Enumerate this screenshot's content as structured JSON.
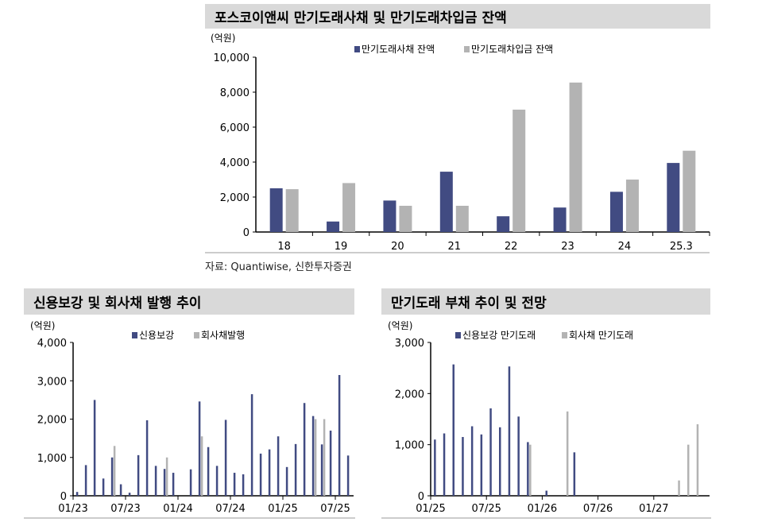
{
  "chart_data": [
    {
      "type": "bar",
      "title": "포스코이앤씨 만기도래사채 및 만기도래차입금 잔액",
      "unit": "(억원)",
      "categories": [
        "18",
        "19",
        "20",
        "21",
        "22",
        "23",
        "24",
        "25.3"
      ],
      "series": [
        {
          "name": "만기도래사채 잔액",
          "color": "#414b82",
          "values": [
            2500,
            600,
            1800,
            3450,
            900,
            1400,
            2300,
            3950
          ]
        },
        {
          "name": "만기도래차입금 잔액",
          "color": "#b3b3b3",
          "values": [
            2450,
            2800,
            1500,
            1500,
            7000,
            8550,
            3000,
            4650
          ]
        }
      ],
      "ylim": [
        0,
        10000
      ],
      "yticks": [
        "0",
        "2,000",
        "4,000",
        "6,000",
        "8,000",
        "10,000"
      ],
      "legend": "top",
      "source": "자료: Quantiwise, 신한투자증권"
    },
    {
      "type": "bar",
      "title": "신용보강 및 회사채 발행 추이",
      "unit": "(억원)",
      "xticks": [
        "01/23",
        "07/23",
        "01/24",
        "07/24",
        "01/25",
        "07/25"
      ],
      "months": [
        "01/23",
        "02/23",
        "03/23",
        "04/23",
        "05/23",
        "06/23",
        "07/23",
        "08/23",
        "09/23",
        "10/23",
        "11/23",
        "12/23",
        "01/24",
        "02/24",
        "03/24",
        "04/24",
        "05/24",
        "06/24",
        "07/24",
        "08/24",
        "09/24",
        "10/24",
        "11/24",
        "12/24",
        "01/25",
        "02/25",
        "03/25",
        "04/25",
        "05/25",
        "06/25",
        "07/25",
        "08/25"
      ],
      "series": [
        {
          "name": "신용보강",
          "color": "#414b82",
          "values": [
            100,
            800,
            2500,
            450,
            1000,
            300,
            80,
            1060,
            1970,
            780,
            700,
            600,
            0,
            690,
            2460,
            1270,
            780,
            1980,
            600,
            560,
            2650,
            1100,
            1210,
            1550,
            750,
            1350,
            2420,
            2080,
            1340,
            1700,
            3150,
            1050
          ]
        },
        {
          "name": "회사채발행",
          "color": "#b3b3b3",
          "values": [
            0,
            0,
            0,
            0,
            1300,
            0,
            0,
            0,
            0,
            0,
            1000,
            0,
            0,
            0,
            1550,
            0,
            0,
            0,
            0,
            0,
            0,
            0,
            0,
            0,
            0,
            0,
            0,
            2000,
            2000,
            0,
            0,
            0
          ]
        }
      ],
      "ylim": [
        0,
        4000
      ],
      "yticks": [
        "0",
        "1,000",
        "2,000",
        "3,000",
        "4,000"
      ],
      "legend": "top"
    },
    {
      "type": "bar",
      "title": "만기도래 부채 추이 및 전망",
      "unit": "(억원)",
      "xticks": [
        "01/25",
        "07/25",
        "01/26",
        "07/26",
        "01/27"
      ],
      "months": [
        "01/25",
        "02/25",
        "03/25",
        "04/25",
        "05/25",
        "06/25",
        "07/25",
        "08/25",
        "09/25",
        "10/25",
        "11/25",
        "12/25",
        "01/26",
        "02/26",
        "03/26",
        "04/26",
        "05/26",
        "06/26",
        "07/26",
        "08/26",
        "09/26",
        "10/26",
        "11/26",
        "12/26",
        "01/27",
        "02/27",
        "03/27",
        "04/27",
        "05/27",
        "06/27"
      ],
      "series": [
        {
          "name": "신용보강 만기도래",
          "color": "#414b82",
          "values": [
            1100,
            1220,
            2570,
            1150,
            1360,
            1200,
            1710,
            1340,
            2530,
            1550,
            1050,
            0,
            100,
            0,
            0,
            850,
            0,
            0,
            0,
            0,
            0,
            0,
            0,
            0,
            0,
            0,
            0,
            0,
            0,
            0
          ]
        },
        {
          "name": "회사채 만기도래",
          "color": "#b3b3b3",
          "values": [
            0,
            0,
            0,
            0,
            0,
            0,
            0,
            0,
            0,
            0,
            1000,
            0,
            0,
            0,
            1650,
            0,
            0,
            0,
            0,
            0,
            0,
            0,
            0,
            0,
            0,
            0,
            300,
            1000,
            1400,
            0
          ]
        }
      ],
      "ylim": [
        0,
        3000
      ],
      "yticks": [
        "0",
        "1,000",
        "2,000",
        "3,000"
      ],
      "legend": "top"
    }
  ]
}
